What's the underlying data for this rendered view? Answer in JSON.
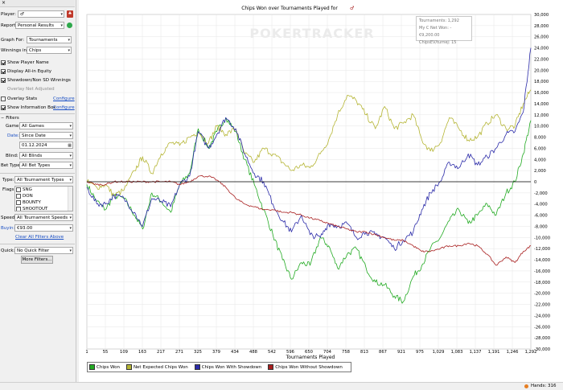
{
  "sidebar": {
    "player_label": "Player:",
    "player_value": "♂",
    "report_label": "Report:",
    "report_value": "Personal Results",
    "graph_for_label": "Graph For:",
    "graph_for_value": "Tournaments",
    "winnings_in_label": "Winnings in:",
    "winnings_in_value": "Chips",
    "checkboxes": [
      {
        "label": "Show Player Name",
        "checked": true
      },
      {
        "label": "Display All-in Equity",
        "checked": true
      },
      {
        "label": "Showdown/Non SD Winnings",
        "checked": true
      },
      {
        "label": "Overlay Net Adjusted",
        "checked": false,
        "disabled": true
      },
      {
        "label": "Overlay Stats",
        "checked": false,
        "link": "Configure"
      },
      {
        "label": "Show Information Box",
        "checked": true,
        "link": "Configure"
      }
    ],
    "filters_header": "Filters",
    "game_label": "Game:",
    "game_value": "All Games",
    "date_label": "Date:",
    "date_value": "Since Date",
    "date_input": "01.12.2024",
    "blind_label": "Blind:",
    "blind_value": "All Blinds",
    "bet_type_label": "Bet Type:",
    "bet_type_value": "All Bet Types",
    "type_label": "Type:",
    "type_value": "All Tournament Types",
    "flags_label": "Flags:",
    "flags": [
      "SNG",
      "DON",
      "BOUNTY",
      "SHOOTOUT"
    ],
    "speed_label": "Speed:",
    "speed_value": "All Tournament Speeds",
    "buyin_label": "Buyin:",
    "buyin_value": "€93.00",
    "clear_filters": "Clear All Filters Above",
    "quick_label": "Quick:",
    "quick_value": "No Quick Filter",
    "more_filters": "More Filters..."
  },
  "chart": {
    "title": "Chips Won over Tournaments Played for",
    "watermark": "POKERTRACKER",
    "tooltip": [
      "Tournaments: 1,292",
      "My C Net Won: -€9,200.00",
      "ChipsEV/turnej: 15"
    ],
    "status": "Hands: 316"
  },
  "chart_data": {
    "type": "line",
    "title": "Chips Won over Tournaments Played for",
    "xlabel": "Tournaments Played",
    "ylabel": "",
    "xlim": [
      1,
      1292
    ],
    "ylim": [
      -30000,
      30000
    ],
    "x_ticks": [
      "1",
      "55",
      "109",
      "163",
      "217",
      "271",
      "325",
      "379",
      "434",
      "488",
      "542",
      "596",
      "650",
      "704",
      "758",
      "813",
      "867",
      "921",
      "975",
      "1,029",
      "1,083",
      "1,137",
      "1,191",
      "1,246",
      "1,292"
    ],
    "y_ticks": [
      "30,000",
      "28,000",
      "26,000",
      "24,000",
      "22,000",
      "20,000",
      "18,000",
      "16,000",
      "14,000",
      "12,000",
      "10,000",
      "8,000",
      "6,000",
      "4,000",
      "2,000",
      "0",
      "-2,000",
      "-4,000",
      "-6,000",
      "-8,000",
      "-10,000",
      "-12,000",
      "-14,000",
      "-16,000",
      "-18,000",
      "-20,000",
      "-22,000",
      "-24,000",
      "-26,000",
      "-28,000",
      "-30,000"
    ],
    "grid": true,
    "legend_position": "bottom-left",
    "series": [
      {
        "name": "Chips Won",
        "color": "#22aa22",
        "x": [
          1,
          30,
          55,
          80,
          109,
          140,
          163,
          190,
          217,
          245,
          271,
          300,
          325,
          355,
          379,
          405,
          434,
          460,
          488,
          515,
          542,
          570,
          596,
          625,
          650,
          680,
          704,
          730,
          758,
          785,
          813,
          840,
          867,
          895,
          921,
          950,
          975,
          1000,
          1029,
          1055,
          1083,
          1110,
          1137,
          1165,
          1191,
          1220,
          1246,
          1270,
          1292
        ],
        "y": [
          -500,
          -3500,
          -5000,
          -2500,
          -3000,
          -6000,
          -8500,
          -2000,
          -3500,
          -5500,
          -500,
          1500,
          9500,
          6000,
          9000,
          11500,
          9000,
          4000,
          -500,
          -5000,
          -9500,
          -14000,
          -17500,
          -14500,
          -15000,
          -10000,
          -11500,
          -15500,
          -13000,
          -12000,
          -15500,
          -18000,
          -18500,
          -20500,
          -21500,
          -17000,
          -15000,
          -12000,
          -10000,
          -7000,
          -5000,
          -7500,
          -6000,
          -4000,
          -6000,
          -2000,
          0,
          5000,
          11000
        ]
      },
      {
        "name": "Net Expected Chips Won",
        "color": "#b5b534",
        "x": [
          1,
          30,
          55,
          80,
          109,
          140,
          163,
          190,
          217,
          245,
          271,
          300,
          325,
          355,
          379,
          405,
          434,
          460,
          488,
          515,
          542,
          570,
          596,
          625,
          650,
          680,
          704,
          730,
          758,
          785,
          813,
          840,
          867,
          895,
          921,
          950,
          975,
          1000,
          1029,
          1055,
          1083,
          1110,
          1137,
          1165,
          1191,
          1220,
          1246,
          1270,
          1292
        ],
        "y": [
          0,
          -1000,
          -500,
          -2500,
          -1500,
          2000,
          4500,
          1500,
          5000,
          7000,
          6500,
          8000,
          9000,
          7000,
          10000,
          8500,
          9500,
          5000,
          3500,
          6000,
          5000,
          3500,
          2000,
          3000,
          2500,
          5000,
          7500,
          12000,
          15500,
          14500,
          12000,
          9500,
          13500,
          9500,
          10500,
          12000,
          7500,
          5500,
          7000,
          11500,
          9500,
          7500,
          8000,
          10500,
          12000,
          9500,
          10000,
          14000,
          16500
        ]
      },
      {
        "name": "Chips Won With Showdown",
        "color": "#2a2aa8",
        "x": [
          1,
          30,
          55,
          80,
          109,
          140,
          163,
          190,
          217,
          245,
          271,
          300,
          325,
          355,
          379,
          405,
          434,
          460,
          488,
          515,
          542,
          570,
          596,
          625,
          650,
          680,
          704,
          730,
          758,
          785,
          813,
          840,
          867,
          895,
          921,
          950,
          975,
          1000,
          1029,
          1055,
          1083,
          1110,
          1137,
          1165,
          1191,
          1220,
          1246,
          1270,
          1292
        ],
        "y": [
          -1000,
          -4000,
          -4000,
          -2500,
          -3000,
          -5500,
          -8000,
          -3000,
          -3500,
          -4500,
          -500,
          1000,
          9000,
          6000,
          8500,
          11500,
          9500,
          5000,
          1500,
          0,
          -4000,
          -7000,
          -9000,
          -6000,
          -9500,
          -10000,
          -7500,
          -8000,
          -7500,
          -10000,
          -9000,
          -9500,
          -10000,
          -12000,
          -10500,
          -9000,
          -5000,
          -2000,
          0,
          3500,
          2500,
          5000,
          3000,
          4500,
          6000,
          8500,
          9000,
          12500,
          24000
        ]
      },
      {
        "name": "Chips Won Without Showdown",
        "color": "#a81e1e",
        "x": [
          1,
          30,
          55,
          80,
          109,
          140,
          163,
          190,
          217,
          245,
          271,
          300,
          325,
          355,
          379,
          405,
          434,
          460,
          488,
          515,
          542,
          570,
          596,
          625,
          650,
          680,
          704,
          730,
          758,
          785,
          813,
          840,
          867,
          895,
          921,
          950,
          975,
          1000,
          1029,
          1055,
          1083,
          1110,
          1137,
          1165,
          1191,
          1220,
          1246,
          1270,
          1292
        ],
        "y": [
          0,
          -500,
          -500,
          0,
          0,
          0,
          0,
          0,
          0,
          0,
          -500,
          0,
          1000,
          1000,
          300,
          -1000,
          -3000,
          -4000,
          -4500,
          -5000,
          -5000,
          -5500,
          -5500,
          -6000,
          -6500,
          -7000,
          -7500,
          -8000,
          -8500,
          -9000,
          -9000,
          -9500,
          -10000,
          -10500,
          -10500,
          -11500,
          -12500,
          -12500,
          -12000,
          -11500,
          -11500,
          -11000,
          -11500,
          -13000,
          -15000,
          -13500,
          -14500,
          -12500,
          -11500
        ]
      }
    ]
  }
}
